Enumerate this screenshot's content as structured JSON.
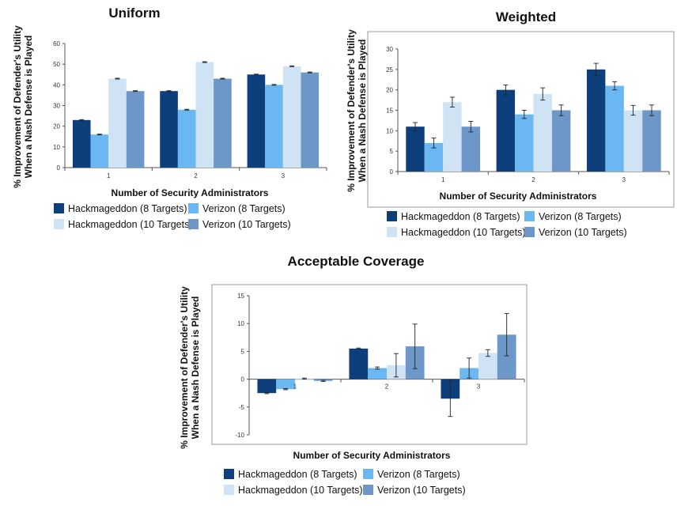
{
  "chart_data": [
    {
      "type": "bar",
      "title": "Uniform",
      "xlabel": "Number of Security Administrators",
      "ylabel": [
        "% Improvement of Defender's Utility",
        "When a Nash Defense is Played"
      ],
      "categories": [
        "1",
        "2",
        "3"
      ],
      "ylim": [
        0,
        60
      ],
      "yticks": [
        0,
        10,
        20,
        30,
        40,
        50,
        60
      ],
      "legend_position": "bottom",
      "series": [
        {
          "name": "Hackmageddon (8 Targets)",
          "values": [
            23,
            37,
            45
          ],
          "errors": [
            0.2,
            0.2,
            0.2
          ]
        },
        {
          "name": "Verizon (8 Targets)",
          "values": [
            16,
            28,
            40
          ],
          "errors": [
            0.2,
            0.2,
            0.2
          ]
        },
        {
          "name": "Hackmageddon (10 Targets)",
          "values": [
            43,
            51,
            49
          ],
          "errors": [
            0.2,
            0.2,
            0.2
          ]
        },
        {
          "name": "Verizon (10 Targets)",
          "values": [
            37,
            43,
            46
          ],
          "errors": [
            0.2,
            0.2,
            0.2
          ]
        }
      ]
    },
    {
      "type": "bar",
      "title": "Weighted",
      "xlabel": "Number of Security Administrators",
      "ylabel": [
        "% Improvement of Defender's Utility",
        "When a Nash Defense is Played"
      ],
      "categories": [
        "1",
        "2",
        "3"
      ],
      "ylim": [
        0,
        30
      ],
      "yticks": [
        0,
        5,
        10,
        15,
        20,
        25,
        30
      ],
      "legend_position": "bottom",
      "series": [
        {
          "name": "Hackmageddon (8 Targets)",
          "values": [
            11,
            20,
            25
          ],
          "errors": [
            1,
            1.2,
            1.5
          ]
        },
        {
          "name": "Verizon (8 Targets)",
          "values": [
            7,
            14,
            21
          ],
          "errors": [
            1.2,
            1,
            1
          ]
        },
        {
          "name": "Hackmageddon (10 Targets)",
          "values": [
            17,
            19,
            15
          ],
          "errors": [
            1.2,
            1.5,
            1.2
          ]
        },
        {
          "name": "Verizon (10 Targets)",
          "values": [
            11,
            15,
            15
          ],
          "errors": [
            1.3,
            1.3,
            1.3
          ]
        }
      ]
    },
    {
      "type": "bar",
      "title": "Acceptable Coverage",
      "xlabel": "Number of Security Administrators",
      "ylabel": [
        "% Improvement of Defender's Utility",
        "When a Nash Defense is Played"
      ],
      "categories": [
        "1",
        "2",
        "3"
      ],
      "ylim": [
        -10,
        15
      ],
      "yticks": [
        -10,
        -5,
        0,
        5,
        10,
        15
      ],
      "legend_position": "bottom",
      "series": [
        {
          "name": "Hackmageddon (8 Targets)",
          "values": [
            -2.5,
            5.5,
            -3.5
          ],
          "errors": [
            0.1,
            0.1,
            3.2
          ]
        },
        {
          "name": "Verizon (8 Targets)",
          "values": [
            -1.8,
            2,
            2
          ],
          "errors": [
            0.1,
            0.2,
            1.8
          ]
        },
        {
          "name": "Hackmageddon (10 Targets)",
          "values": [
            0.1,
            2.5,
            4.7
          ],
          "errors": [
            0.1,
            2.1,
            0.6
          ]
        },
        {
          "name": "Verizon (10 Targets)",
          "values": [
            -0.3,
            5.9,
            8
          ],
          "errors": [
            0.1,
            4,
            3.8
          ]
        }
      ]
    }
  ],
  "colors": [
    "#0e3f7d",
    "#6ab7f1",
    "#cfe3f4",
    "#6e97c9"
  ]
}
